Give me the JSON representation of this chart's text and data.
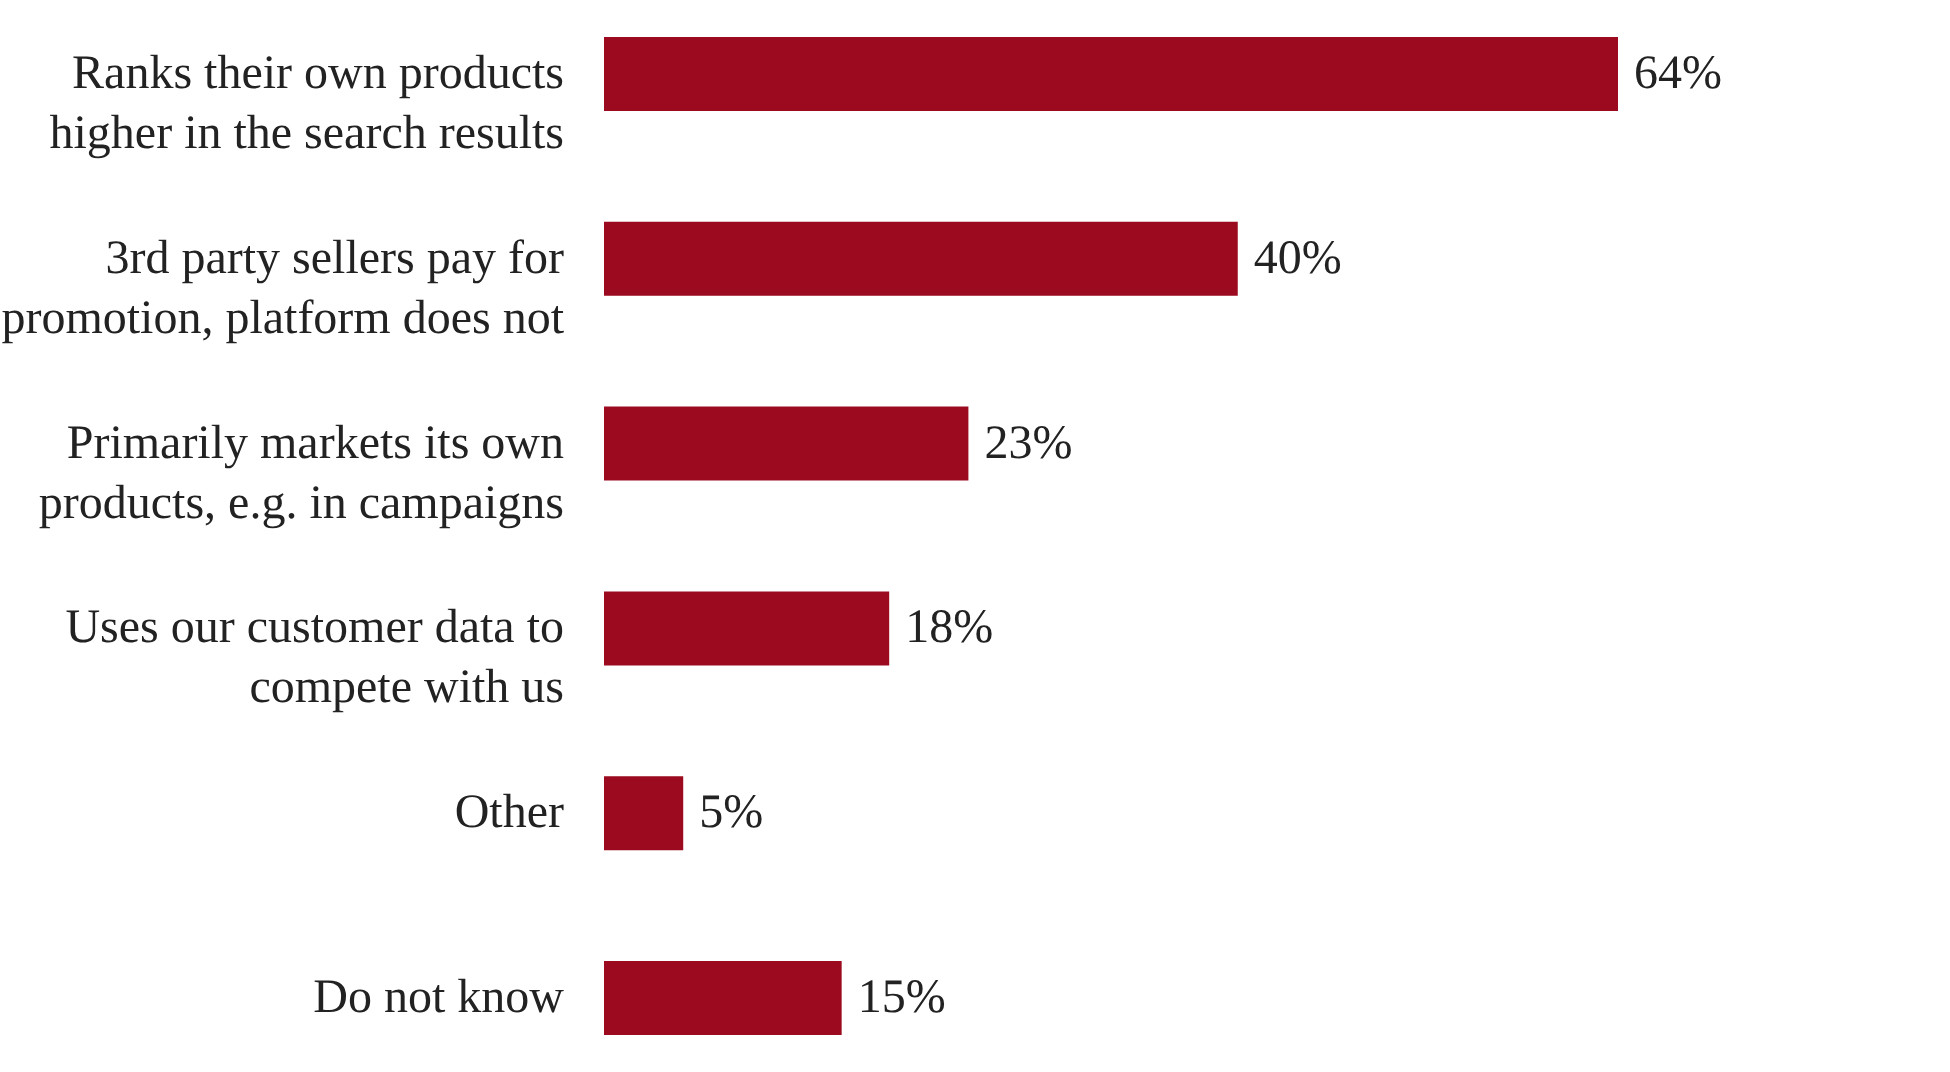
{
  "chart_data": {
    "type": "bar",
    "orientation": "horizontal",
    "categories": [
      "Ranks their own products higher in the search results",
      "3rd party sellers pay for promotion, platform does not",
      "Primarily markets its own products, e.g. in campaigns",
      "Uses our customer data to compete with us",
      "Other",
      "Do not know"
    ],
    "values": [
      64,
      40,
      23,
      18,
      5,
      15
    ],
    "value_labels": [
      "64%",
      "40%",
      "23%",
      "18%",
      "5%",
      "15%"
    ],
    "color": "#9b0a1e"
  }
}
